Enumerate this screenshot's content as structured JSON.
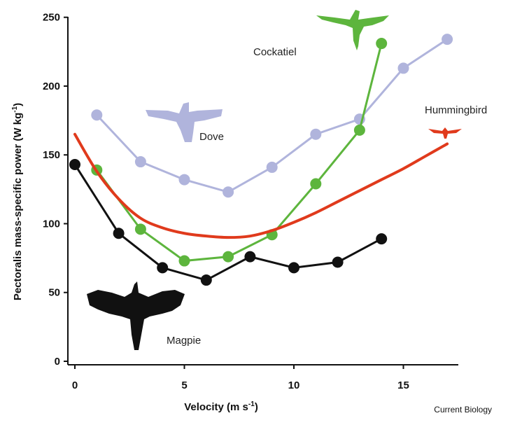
{
  "chart_data": {
    "type": "line",
    "xlabel": "Velocity (m s",
    "xlabel_sup": "-1",
    "xlabel_end": ")",
    "ylabel": "Pectoralis mass-specific power (W kg",
    "ylabel_sup": "-1",
    "ylabel_end": ")",
    "xlim": [
      -0.5,
      17.5
    ],
    "ylim": [
      -3,
      250
    ],
    "xticks": [
      0,
      5,
      10,
      15
    ],
    "yticks": [
      0,
      50,
      100,
      150,
      200,
      250
    ],
    "grid": false,
    "series": [
      {
        "name": "Dove",
        "color": "#b0b4dc",
        "x": [
          1,
          3,
          5,
          7,
          9,
          11,
          13,
          15,
          17
        ],
        "y": [
          179,
          145,
          132,
          123,
          141,
          165,
          176,
          213,
          234
        ]
      },
      {
        "name": "Cockatiel",
        "color": "#5db53d",
        "x": [
          1,
          3,
          5,
          7,
          9,
          11,
          13,
          14
        ],
        "y": [
          139,
          96,
          73,
          76,
          92,
          129,
          168,
          231
        ]
      },
      {
        "name": "Magpie",
        "color": "#111111",
        "x": [
          0,
          2,
          4,
          6,
          8,
          10,
          12,
          14
        ],
        "y": [
          143,
          93,
          68,
          59,
          76,
          68,
          72,
          89
        ]
      },
      {
        "name": "Hummingbird",
        "color": "#e03a1c",
        "curve": true,
        "x": [
          0,
          1,
          2,
          3,
          4,
          5,
          6,
          7,
          8,
          9,
          10,
          11,
          12,
          13,
          14,
          15,
          16,
          17
        ],
        "y": [
          165,
          138,
          118,
          104,
          97,
          93,
          91,
          90,
          91,
          95,
          101,
          108,
          116,
          124,
          132,
          140,
          149,
          158
        ]
      }
    ]
  },
  "credit": "Current Biology",
  "icons": [
    "cockatiel-silhouette-icon",
    "dove-silhouette-icon",
    "hummingbird-silhouette-icon",
    "magpie-silhouette-icon"
  ]
}
